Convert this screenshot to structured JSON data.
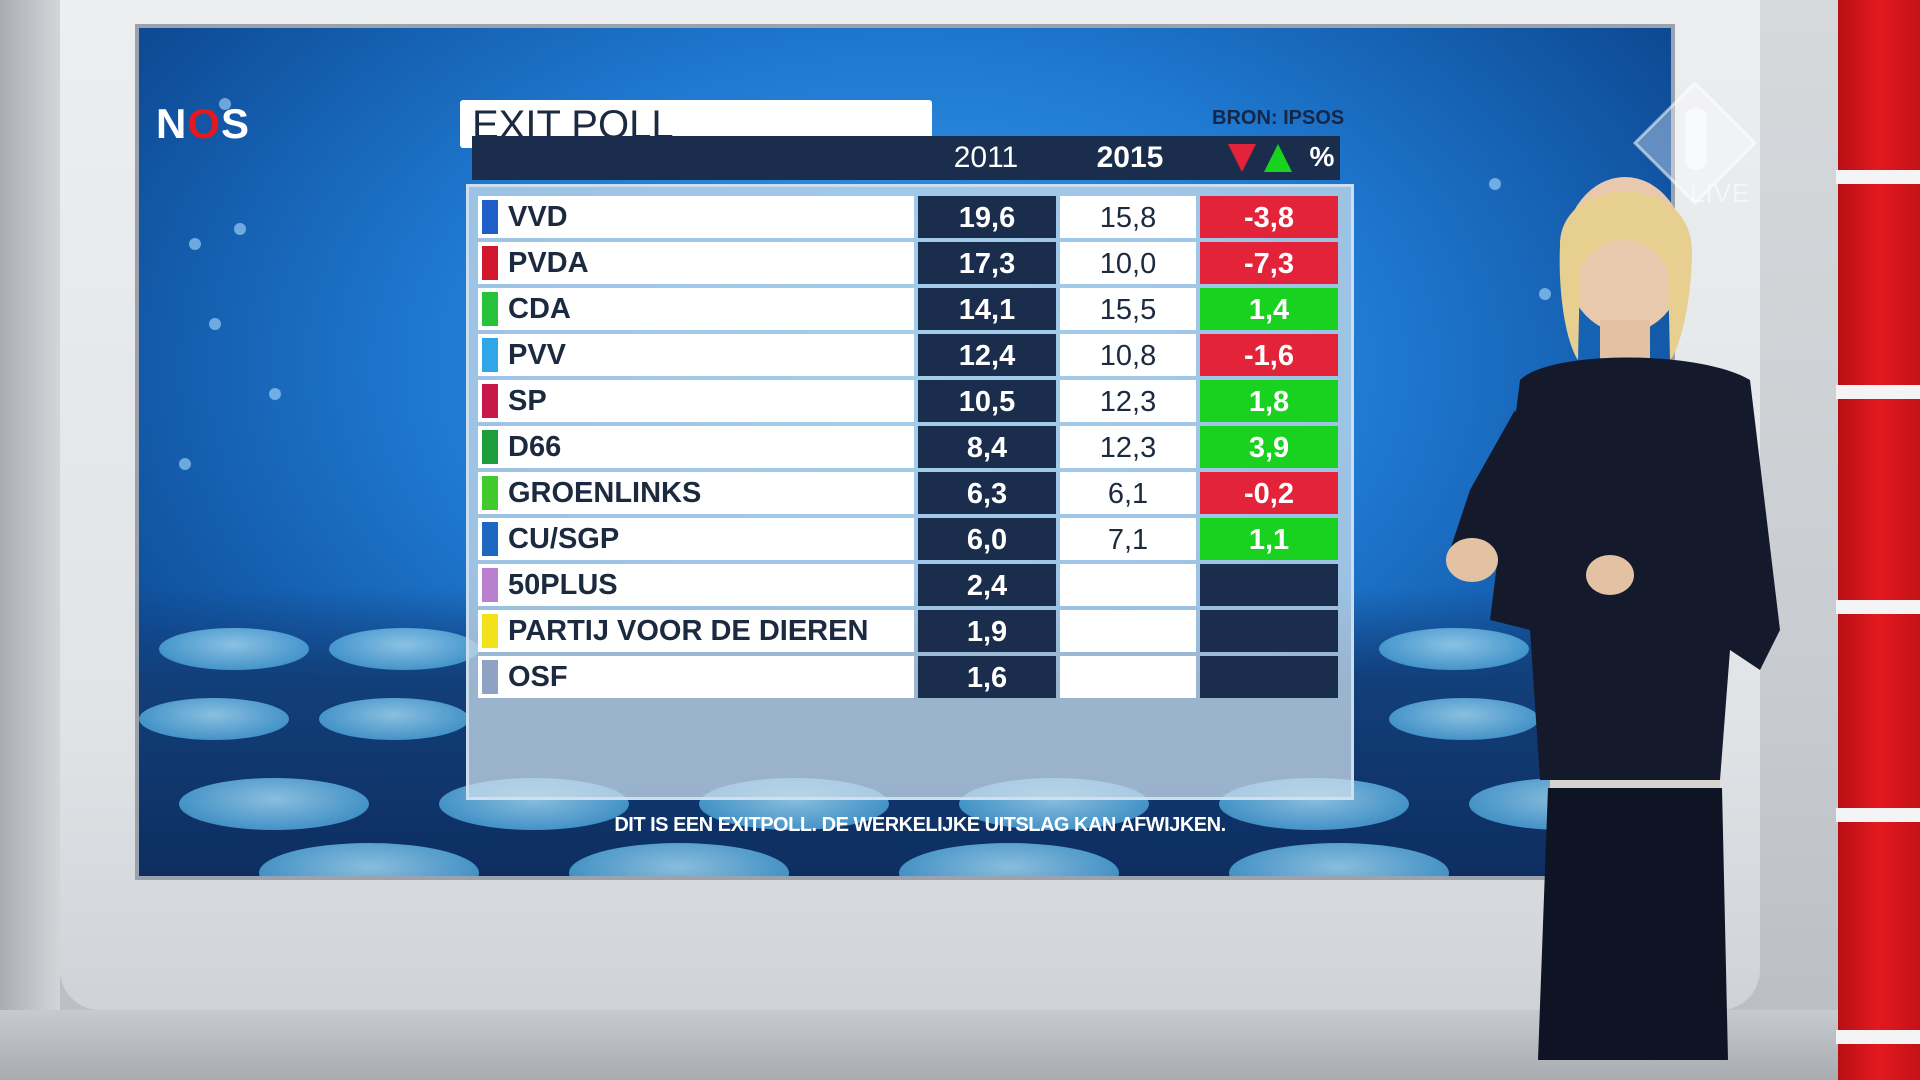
{
  "broadcaster_logo": {
    "n": "N",
    "o": "O",
    "s": "S"
  },
  "npo_bug": {
    "live_label": "LIVE"
  },
  "graphic": {
    "title": "EXIT POLL",
    "source": "BRON: IPSOS",
    "columns": {
      "y2011": "2011",
      "y2015": "2015",
      "percent": "%"
    },
    "colors": {
      "up": "#19d11f",
      "down": "#e3233a",
      "header": "#1a2d4c"
    },
    "rows": [
      {
        "party": "VVD",
        "color": "#1f5ec9",
        "v2011": "19,6",
        "v2015": "15,8",
        "diff": "-3,8",
        "direction": "down"
      },
      {
        "party": "PVDA",
        "color": "#d0172b",
        "v2011": "17,3",
        "v2015": "10,0",
        "diff": "-7,3",
        "direction": "down"
      },
      {
        "party": "CDA",
        "color": "#27c23a",
        "v2011": "14,1",
        "v2015": "15,5",
        "diff": "1,4",
        "direction": "up"
      },
      {
        "party": "PVV",
        "color": "#2fa6ea",
        "v2011": "12,4",
        "v2015": "10,8",
        "diff": "-1,6",
        "direction": "down"
      },
      {
        "party": "SP",
        "color": "#c8184a",
        "v2011": "10,5",
        "v2015": "12,3",
        "diff": "1,8",
        "direction": "up"
      },
      {
        "party": "D66",
        "color": "#1f9c3b",
        "v2011": "8,4",
        "v2015": "12,3",
        "diff": "3,9",
        "direction": "up"
      },
      {
        "party": "GROENLINKS",
        "color": "#41c92e",
        "v2011": "6,3",
        "v2015": "6,1",
        "diff": "-0,2",
        "direction": "down"
      },
      {
        "party": "CU/SGP",
        "color": "#1d66c2",
        "v2011": "6,0",
        "v2015": "7,1",
        "diff": "1,1",
        "direction": "up"
      },
      {
        "party": "50PLUS",
        "color": "#b980cf",
        "v2011": "2,4",
        "v2015": "",
        "diff": "",
        "direction": "none"
      },
      {
        "party": "PARTIJ VOOR DE DIEREN",
        "color": "#f2e21b",
        "v2011": "1,9",
        "v2015": "",
        "diff": "",
        "direction": "none"
      },
      {
        "party": "OSF",
        "color": "#8ea2c4",
        "v2011": "1,6",
        "v2015": "",
        "diff": "",
        "direction": "none"
      }
    ],
    "disclaimer": "DIT IS EEN EXITPOLL.  DE WERKELIJKE UITSLAG KAN AFWIJKEN."
  },
  "icons": [
    "nos-logo",
    "npo-logo-icon",
    "down-triangle-icon",
    "up-triangle-icon"
  ]
}
